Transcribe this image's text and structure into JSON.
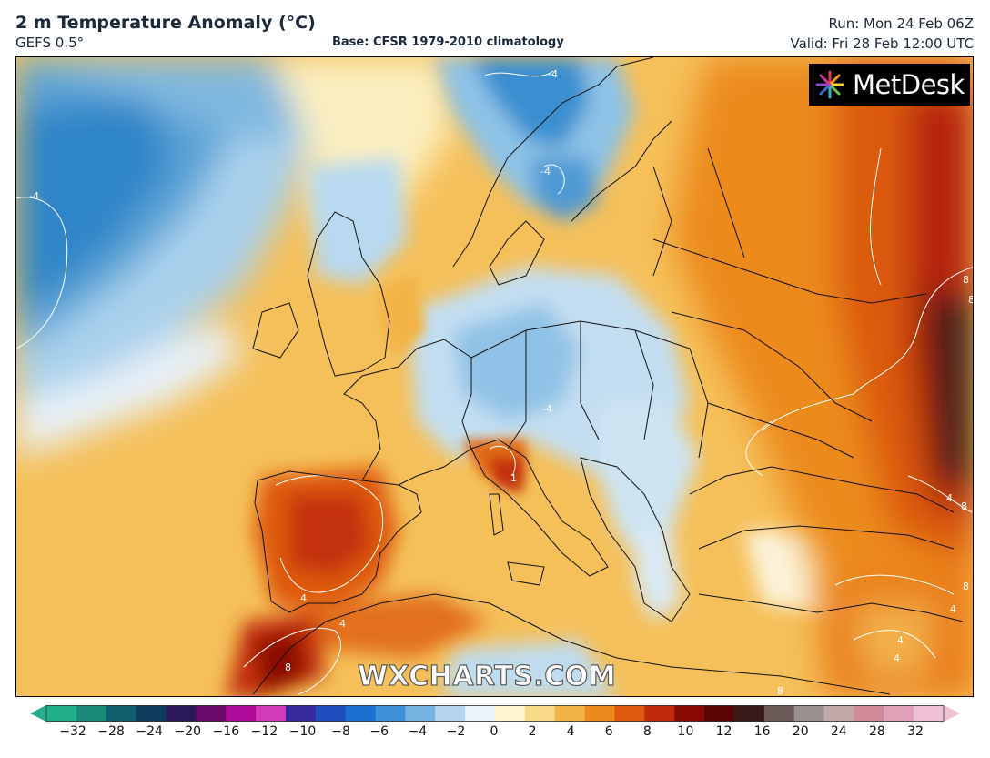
{
  "header": {
    "title": "2 m Temperature Anomaly (°C)",
    "model": "GEFS 0.5°",
    "base": "Base: CFSR 1979-2010 climatology",
    "run": "Run: Mon 24 Feb 06Z",
    "valid": "Valid: Fri 28 Feb 12:00 UTC"
  },
  "logo": {
    "text": "MetDesk"
  },
  "watermark": {
    "text": "WXCHARTS.COM"
  },
  "colorbar": {
    "ticks": [
      "−32",
      "−28",
      "−24",
      "−20",
      "−16",
      "−12",
      "−10",
      "−8",
      "−6",
      "−4",
      "−2",
      "0",
      "2",
      "4",
      "6",
      "8",
      "10",
      "12",
      "16",
      "20",
      "24",
      "28",
      "32"
    ],
    "colors": [
      "#22b08c",
      "#1a8a7a",
      "#115e6e",
      "#0d3b5c",
      "#2a1a5a",
      "#6a0a6a",
      "#b00a9a",
      "#d23ab8",
      "#3a2aa0",
      "#1f4fbf",
      "#1d6fd0",
      "#3c90d8",
      "#76b3e0",
      "#b5d6ee",
      "#eaf3fb",
      "#fdf6d0",
      "#f8d98a",
      "#f3b447",
      "#ed8a1e",
      "#de5a10",
      "#bf2a0a",
      "#8a0a05",
      "#5a0503",
      "#3a1a18",
      "#6a5a58",
      "#9a9090",
      "#c0a8a8",
      "#d08a9a",
      "#e0a0b8",
      "#f0c0d4"
    ]
  },
  "contour_labels": [
    "-4",
    "-4",
    "-4",
    "-4",
    "8",
    "8",
    "4",
    "4",
    "1",
    "4",
    "8",
    "4",
    "4",
    "8",
    "8",
    "4",
    "8"
  ]
}
